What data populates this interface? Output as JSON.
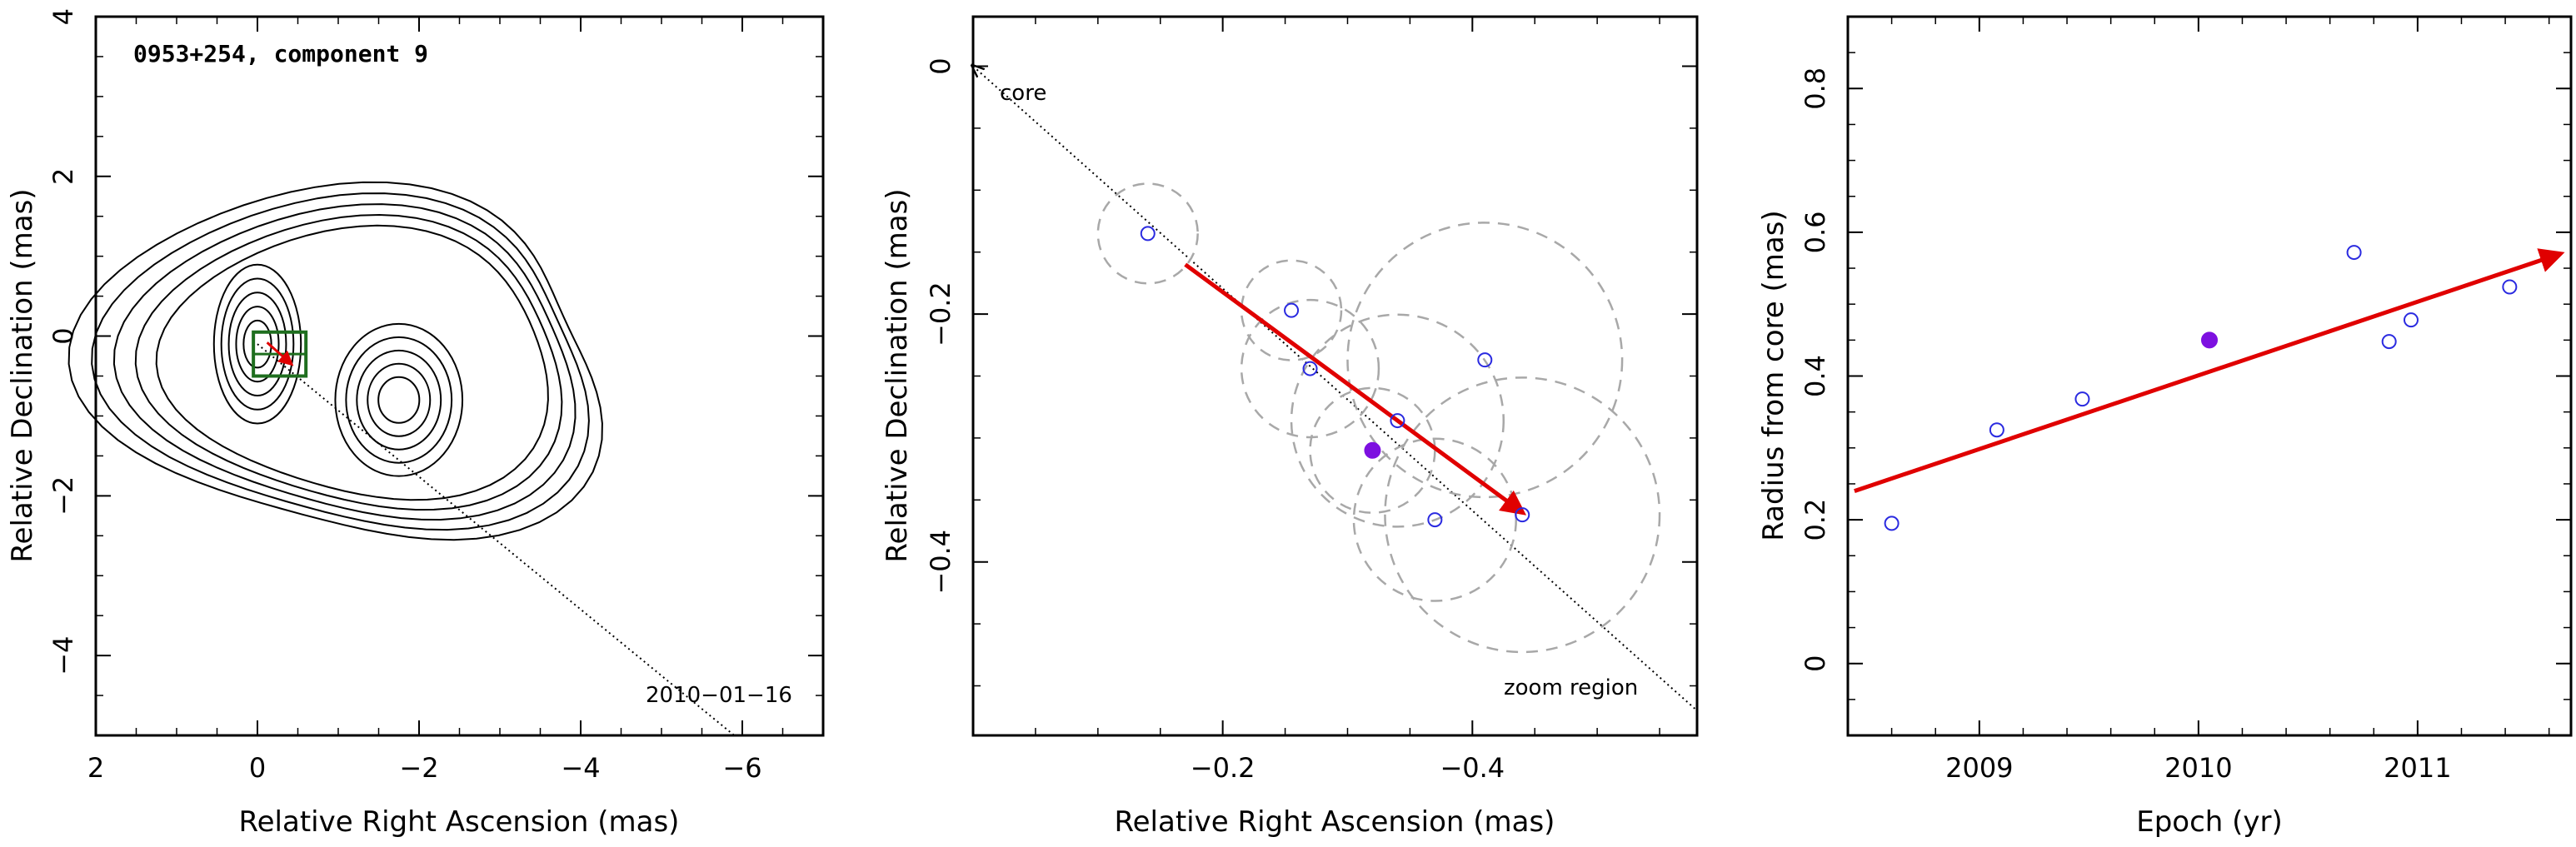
{
  "colors": {
    "axis": "#000000",
    "fit_arrow": "#e00000",
    "open_marker": "#2a2ae0",
    "filled_marker": "#7d10e0",
    "error_circle": "#a8a8a8",
    "box": "#1e6e1e",
    "contour": "#000000"
  },
  "chart_data": [
    {
      "type": "contour",
      "title": "0953+254, component 9",
      "xlabel": "Relative Right Ascension (mas)",
      "ylabel": "Relative Declination (mas)",
      "xlim": [
        2,
        -7
      ],
      "ylim": [
        -5,
        4
      ],
      "x_ticks": [
        "2",
        "0",
        "−2",
        "−4",
        "−6"
      ],
      "y_ticks": [
        "4",
        "2",
        "0",
        "−2",
        "−4"
      ],
      "annotations": [
        {
          "text": "2010−01−16"
        }
      ],
      "core_position": [
        0,
        -0.1
      ],
      "secondary_peak": [
        -1.75,
        -0.8
      ],
      "n_contours": 10,
      "zoom_box": {
        "x": [
          0.05,
          -0.6
        ],
        "y": [
          0.05,
          -0.5
        ]
      },
      "jet_direction_line": {
        "from": [
          0,
          -0.1
        ],
        "to": [
          -5.9,
          -5.0
        ]
      }
    },
    {
      "type": "scatter",
      "xlabel": "Relative Right Ascension (mas)",
      "ylabel": "Relative Declination (mas)",
      "xlim": [
        -0.0,
        -0.58
      ],
      "ylim": [
        -0.54,
        0.04
      ],
      "x_ticks": [
        "−0.2",
        "−0.4"
      ],
      "y_ticks": [
        "0",
        "−0.2",
        "−0.4"
      ],
      "annotations": [
        {
          "text": "core"
        },
        {
          "text": "zoom region"
        }
      ],
      "points": [
        {
          "x": -0.14,
          "y": -0.135,
          "err": 0.04
        },
        {
          "x": -0.255,
          "y": -0.197,
          "err": 0.04
        },
        {
          "x": -0.27,
          "y": -0.244,
          "err": 0.055
        },
        {
          "x": -0.34,
          "y": -0.286,
          "err": 0.085
        },
        {
          "x": -0.37,
          "y": -0.366,
          "err": 0.065
        },
        {
          "x": -0.41,
          "y": -0.237,
          "err": 0.11
        },
        {
          "x": -0.44,
          "y": -0.362,
          "err": 0.11
        },
        {
          "x": -0.32,
          "y": -0.31,
          "err": 0.05,
          "filled": true
        }
      ],
      "fit_arrow": {
        "from": [
          -0.17,
          -0.16
        ],
        "to": [
          -0.44,
          -0.36
        ]
      },
      "core_line": {
        "from": [
          -0.0,
          0.0
        ],
        "to": [
          -0.58,
          -0.52
        ]
      }
    },
    {
      "type": "scatter",
      "xlabel": "Epoch (yr)",
      "ylabel": "Radius from core (mas)",
      "xlim": [
        2008.4,
        2011.7
      ],
      "ylim": [
        -0.1,
        0.9
      ],
      "x_ticks": [
        "2009",
        "2010",
        "2011"
      ],
      "y_ticks": [
        "0",
        "0.2",
        "0.4",
        "0.6",
        "0.8"
      ],
      "points": [
        {
          "x": 2008.6,
          "y": 0.195
        },
        {
          "x": 2009.08,
          "y": 0.325
        },
        {
          "x": 2009.47,
          "y": 0.368
        },
        {
          "x": 2010.71,
          "y": 0.572
        },
        {
          "x": 2010.87,
          "y": 0.448
        },
        {
          "x": 2010.97,
          "y": 0.478
        },
        {
          "x": 2011.42,
          "y": 0.524
        },
        {
          "x": 2010.05,
          "y": 0.45,
          "filled": true
        }
      ],
      "fit_arrow": {
        "from": [
          2008.43,
          0.24
        ],
        "to": [
          2011.65,
          0.57
        ]
      }
    }
  ]
}
